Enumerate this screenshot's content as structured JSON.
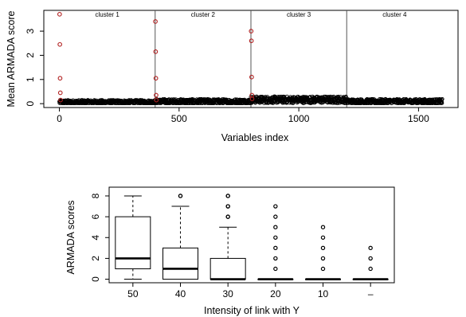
{
  "chart_data": [
    {
      "type": "scatter",
      "xlabel": "Variables index",
      "ylabel": "Mean ARMADA score",
      "xlim": [
        0,
        1600
      ],
      "ylim": [
        0,
        3.75
      ],
      "x_ticks": [
        0,
        500,
        1000,
        1500
      ],
      "y_ticks": [
        0,
        1,
        2,
        3
      ],
      "tick_labels": {
        "x": [
          "0",
          "500",
          "1000",
          "1500"
        ],
        "y": [
          "0",
          "1",
          "2",
          "3"
        ]
      },
      "clusters": [
        {
          "label": "cluster 1",
          "x_range": [
            0,
            400
          ]
        },
        {
          "label": "cluster 2",
          "x_range": [
            400,
            800
          ]
        },
        {
          "label": "cluster 3",
          "x_range": [
            800,
            1200
          ]
        },
        {
          "label": "cluster 4",
          "x_range": [
            1200,
            1600
          ]
        }
      ],
      "cluster_boundaries": [
        400,
        800,
        1200
      ],
      "highlight_color": "#b22222",
      "point_color": "#000000",
      "highlighted_points": [
        {
          "x": 1,
          "y": 3.7
        },
        {
          "x": 2,
          "y": 2.45
        },
        {
          "x": 3,
          "y": 1.05
        },
        {
          "x": 4,
          "y": 0.45
        },
        {
          "x": 5,
          "y": 0.15
        },
        {
          "x": 401,
          "y": 3.4
        },
        {
          "x": 402,
          "y": 2.15
        },
        {
          "x": 403,
          "y": 1.05
        },
        {
          "x": 404,
          "y": 0.35
        },
        {
          "x": 405,
          "y": 0.15
        },
        {
          "x": 801,
          "y": 3.0
        },
        {
          "x": 802,
          "y": 2.6
        },
        {
          "x": 803,
          "y": 1.1
        },
        {
          "x": 804,
          "y": 0.35
        },
        {
          "x": 805,
          "y": 0.2
        }
      ],
      "background_points": {
        "n": 1600,
        "segments": [
          {
            "x_range": [
              0,
              400
            ],
            "y_center": 0.06,
            "y_spread": 0.09
          },
          {
            "x_range": [
              400,
              800
            ],
            "y_center": 0.08,
            "y_spread": 0.11
          },
          {
            "x_range": [
              800,
              1200
            ],
            "y_center": 0.16,
            "y_spread": 0.14
          },
          {
            "x_range": [
              1200,
              1600
            ],
            "y_center": 0.09,
            "y_spread": 0.1
          }
        ]
      }
    },
    {
      "type": "box",
      "xlabel": "Intensity of link with Y",
      "ylabel": "ARMADA scores",
      "ylim": [
        0,
        8.5
      ],
      "y_ticks": [
        0,
        2,
        4,
        6,
        8
      ],
      "tick_labels": {
        "y": [
          "0",
          "2",
          "4",
          "6",
          "8"
        ]
      },
      "categories": [
        "50",
        "40",
        "30",
        "20",
        "10",
        "–"
      ],
      "boxes": [
        {
          "whisker_low": 0,
          "q1": 1,
          "median": 2,
          "q3": 6,
          "whisker_high": 8,
          "outliers": []
        },
        {
          "whisker_low": 0,
          "q1": 0,
          "median": 1,
          "q3": 3,
          "whisker_high": 7,
          "outliers": [
            8,
            8
          ]
        },
        {
          "whisker_low": 0,
          "q1": 0,
          "median": 0,
          "q3": 2,
          "whisker_high": 5,
          "outliers": [
            6,
            6,
            7,
            7,
            8,
            8
          ]
        },
        {
          "whisker_low": 0,
          "q1": 0,
          "median": 0,
          "q3": 0,
          "whisker_high": 0,
          "outliers": [
            1,
            2,
            3,
            4,
            5,
            6,
            7
          ]
        },
        {
          "whisker_low": 0,
          "q1": 0,
          "median": 0,
          "q3": 0,
          "whisker_high": 0,
          "outliers": [
            1,
            2,
            3,
            4,
            5
          ]
        },
        {
          "whisker_low": 0,
          "q1": 0,
          "median": 0,
          "q3": 0,
          "whisker_high": 0,
          "outliers": [
            1,
            2,
            3
          ]
        }
      ]
    }
  ]
}
